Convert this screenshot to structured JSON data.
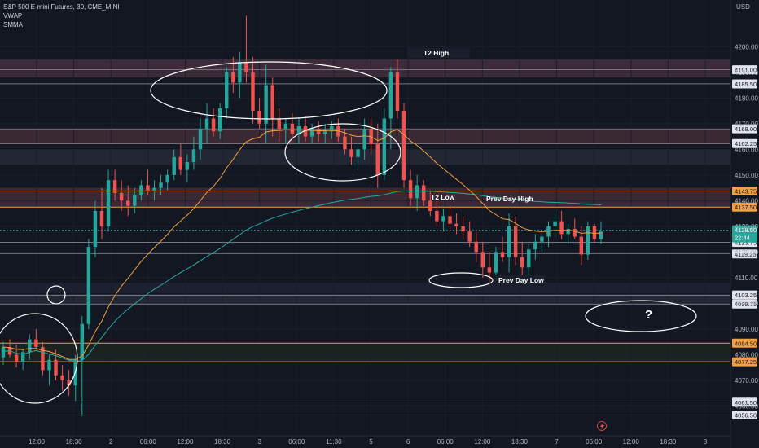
{
  "chart_data": {
    "type": "candlestick",
    "title": "S&P 500 E-mini Futures, 30, CME_MINI",
    "indicators": [
      "VWAP",
      "SMMA"
    ],
    "currency": "USD",
    "ylim": [
      4050,
      4215
    ],
    "y_ticks": [
      4060,
      4070,
      4080,
      4090,
      4100,
      4110,
      4120,
      4130,
      4140,
      4150,
      4160,
      4170,
      4180,
      4190,
      4200
    ],
    "x_ticks": [
      "12:00",
      "18:30",
      "2",
      "06:00",
      "12:00",
      "18:30",
      "3",
      "06:00",
      "11:30",
      "5",
      "6",
      "06:00",
      "12:00",
      "18:30",
      "7",
      "06:00",
      "12:00",
      "18:30",
      "8"
    ],
    "price_levels": [
      {
        "price": "4191.00",
        "value": 4191.0,
        "style": "white"
      },
      {
        "price": "4185.50",
        "value": 4185.5,
        "style": "white"
      },
      {
        "price": "4168.00",
        "value": 4168.0,
        "style": "white"
      },
      {
        "price": "4162.25",
        "value": 4162.25,
        "style": "white"
      },
      {
        "price": "4143.75",
        "value": 4143.75,
        "style": "orange"
      },
      {
        "price": "4137.50",
        "value": 4137.5,
        "style": "orange"
      },
      {
        "price": "4123.75",
        "value": 4123.75,
        "style": "white"
      },
      {
        "price": "4119.25",
        "value": 4119.25,
        "style": "white"
      },
      {
        "price": "4103.25",
        "value": 4103.25,
        "style": "white"
      },
      {
        "price": "4099.75",
        "value": 4099.75,
        "style": "white"
      },
      {
        "price": "4084.50",
        "value": 4084.5,
        "style": "orange"
      },
      {
        "price": "4077.25",
        "value": 4077.25,
        "style": "orange"
      },
      {
        "price": "4061.50",
        "value": 4061.5,
        "style": "white"
      },
      {
        "price": "4056.50",
        "value": 4056.5,
        "style": "white"
      }
    ],
    "zones": [
      {
        "from": 4188,
        "to": 4195,
        "color": "#3d2b3a"
      },
      {
        "from": 4162,
        "to": 4168,
        "color": "#3a2833"
      },
      {
        "from": 4154,
        "to": 4160,
        "color": "#232734"
      },
      {
        "from": 4137.5,
        "to": 4145,
        "color": "#3a2833"
      },
      {
        "from": 4077,
        "to": 4084.5,
        "color": "#1a2320"
      },
      {
        "from": 4099.75,
        "to": 4103.25,
        "color": "#232734"
      },
      {
        "from": 4104,
        "to": 4108,
        "color": "#1c2030"
      }
    ],
    "current_price": {
      "price": "4128.50",
      "countdown": "22:44",
      "value": 4128.5
    },
    "labels": {
      "t2_high": "T2 High",
      "t2_low": "T2 Low",
      "prev_day_high": "Prev Day High",
      "prev_day_low": "Prev Day Low",
      "question": "?"
    },
    "candles": [
      [
        4079,
        4085,
        4076,
        4083
      ],
      [
        4083,
        4086,
        4079,
        4080
      ],
      [
        4080,
        4084,
        4075,
        4077
      ],
      [
        4077,
        4082,
        4074,
        4081
      ],
      [
        4081,
        4088,
        4078,
        4086
      ],
      [
        4086,
        4090,
        4082,
        4083
      ],
      [
        4083,
        4085,
        4072,
        4074
      ],
      [
        4074,
        4080,
        4068,
        4078
      ],
      [
        4078,
        4082,
        4070,
        4072
      ],
      [
        4072,
        4076,
        4066,
        4070
      ],
      [
        4070,
        4074,
        4064,
        4068
      ],
      [
        4068,
        4080,
        4062,
        4078
      ],
      [
        4078,
        4095,
        4056,
        4092
      ],
      [
        4092,
        4125,
        4090,
        4122
      ],
      [
        4122,
        4140,
        4118,
        4136
      ],
      [
        4136,
        4145,
        4125,
        4130
      ],
      [
        4130,
        4152,
        4128,
        4148
      ],
      [
        4148,
        4152,
        4140,
        4143
      ],
      [
        4143,
        4148,
        4136,
        4140
      ],
      [
        4140,
        4146,
        4134,
        4138
      ],
      [
        4138,
        4145,
        4135,
        4142
      ],
      [
        4142,
        4148,
        4140,
        4146
      ],
      [
        4146,
        4152,
        4142,
        4144
      ],
      [
        4144,
        4148,
        4140,
        4145
      ],
      [
        4145,
        4150,
        4142,
        4147
      ],
      [
        4147,
        4152,
        4144,
        4150
      ],
      [
        4150,
        4160,
        4148,
        4157
      ],
      [
        4157,
        4162,
        4150,
        4152
      ],
      [
        4152,
        4158,
        4147,
        4155
      ],
      [
        4155,
        4165,
        4152,
        4160
      ],
      [
        4160,
        4172,
        4156,
        4168
      ],
      [
        4168,
        4178,
        4162,
        4172
      ],
      [
        4172,
        4176,
        4165,
        4167
      ],
      [
        4167,
        4178,
        4164,
        4176
      ],
      [
        4176,
        4192,
        4172,
        4190
      ],
      [
        4190,
        4196,
        4182,
        4186
      ],
      [
        4186,
        4198,
        4180,
        4194
      ],
      [
        4194,
        4212,
        4186,
        4190
      ],
      [
        4190,
        4196,
        4170,
        4175
      ],
      [
        4175,
        4180,
        4168,
        4170
      ],
      [
        4170,
        4193,
        4162,
        4185
      ],
      [
        4185,
        4188,
        4165,
        4172
      ],
      [
        4172,
        4176,
        4163,
        4168
      ],
      [
        4168,
        4172,
        4162,
        4170
      ],
      [
        4170,
        4174,
        4164,
        4166
      ],
      [
        4166,
        4172,
        4162,
        4169
      ],
      [
        4169,
        4173,
        4163,
        4165
      ],
      [
        4165,
        4170,
        4162,
        4168
      ],
      [
        4168,
        4171,
        4163,
        4166
      ],
      [
        4166,
        4170,
        4162,
        4167
      ],
      [
        4167,
        4171,
        4164,
        4169
      ],
      [
        4169,
        4172,
        4163,
        4165
      ],
      [
        4165,
        4168,
        4158,
        4160
      ],
      [
        4160,
        4165,
        4154,
        4157
      ],
      [
        4157,
        4162,
        4152,
        4160
      ],
      [
        4160,
        4172,
        4156,
        4168
      ],
      [
        4168,
        4172,
        4158,
        4162
      ],
      [
        4162,
        4170,
        4145,
        4150
      ],
      [
        4150,
        4176,
        4148,
        4172
      ],
      [
        4172,
        4192,
        4160,
        4190
      ],
      [
        4190,
        4195,
        4172,
        4175
      ],
      [
        4175,
        4178,
        4145,
        4148
      ],
      [
        4148,
        4152,
        4138,
        4141
      ],
      [
        4141,
        4150,
        4136,
        4146
      ],
      [
        4146,
        4148,
        4138,
        4140
      ],
      [
        4140,
        4144,
        4134,
        4136
      ],
      [
        4136,
        4140,
        4130,
        4132
      ],
      [
        4132,
        4137,
        4128,
        4134
      ],
      [
        4134,
        4138,
        4129,
        4131
      ],
      [
        4131,
        4135,
        4127,
        4130
      ],
      [
        4130,
        4134,
        4125,
        4128
      ],
      [
        4128,
        4132,
        4122,
        4124
      ],
      [
        4124,
        4128,
        4116,
        4120
      ],
      [
        4120,
        4124,
        4110,
        4114
      ],
      [
        4114,
        4120,
        4108,
        4112
      ],
      [
        4112,
        4122,
        4110,
        4120
      ],
      [
        4120,
        4126,
        4116,
        4118
      ],
      [
        4118,
        4135,
        4112,
        4130
      ],
      [
        4130,
        4134,
        4115,
        4118
      ],
      [
        4118,
        4124,
        4108,
        4114
      ],
      [
        4114,
        4123,
        4110,
        4121
      ],
      [
        4121,
        4127,
        4117,
        4124
      ],
      [
        4124,
        4129,
        4120,
        4126
      ],
      [
        4126,
        4132,
        4122,
        4130
      ],
      [
        4130,
        4135,
        4126,
        4132
      ],
      [
        4132,
        4136,
        4125,
        4127
      ],
      [
        4127,
        4131,
        4123,
        4129
      ],
      [
        4129,
        4133,
        4125,
        4126
      ],
      [
        4126,
        4130,
        4115,
        4119
      ],
      [
        4119,
        4132,
        4117,
        4130
      ],
      [
        4130,
        4131,
        4124,
        4125
      ],
      [
        4125,
        4132,
        4123,
        4128
      ]
    ]
  }
}
